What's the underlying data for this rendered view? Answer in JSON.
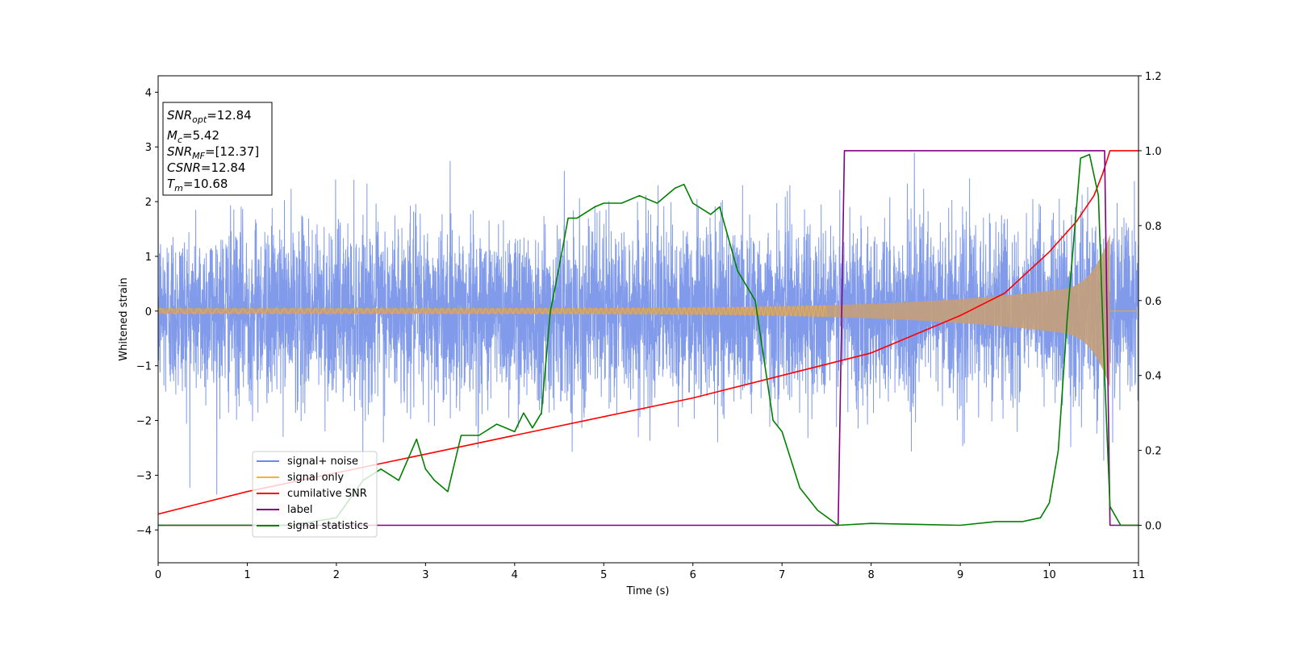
{
  "chart_data": {
    "type": "line",
    "xlabel": "Time (s)",
    "ylabel": "Whitened strain",
    "xlim": [
      0,
      11
    ],
    "ylim_left": [
      -4.6,
      4.3
    ],
    "ylim_right": [
      -0.1,
      1.2
    ],
    "x_ticks": [
      0,
      1,
      2,
      3,
      4,
      5,
      6,
      7,
      8,
      9,
      10,
      11
    ],
    "y_ticks_left": [
      -4,
      -3,
      -2,
      -1,
      0,
      1,
      2,
      3,
      4
    ],
    "y_ticks_right": [
      0.0,
      0.2,
      0.4,
      0.6,
      0.8,
      1.0,
      1.2
    ],
    "x_tick_labels": [
      "0",
      "1",
      "2",
      "3",
      "4",
      "5",
      "6",
      "7",
      "8",
      "9",
      "10",
      "11"
    ],
    "y_tick_labels_left": [
      "−4",
      "−3",
      "−2",
      "−1",
      "0",
      "1",
      "2",
      "3",
      "4"
    ],
    "y_tick_labels_right": [
      "0.0",
      "0.2",
      "0.4",
      "0.6",
      "0.8",
      "1.0",
      "1.2"
    ],
    "annotation": {
      "snr_opt": {
        "base": "SNR",
        "sub": "opt",
        "value": "=12.84"
      },
      "mc": {
        "base": "M",
        "sub": "c",
        "value": "=5.42"
      },
      "snr_mf": {
        "base": "SNR",
        "sub": "MF",
        "value": "=[12.37]"
      },
      "csnr": {
        "base": "CSNR",
        "sub": "",
        "value": "=12.84"
      },
      "tm": {
        "base": "T",
        "sub": "m",
        "value": "=10.68"
      }
    },
    "legend": {
      "placement": "lower-left",
      "entries": [
        "signal+ noise",
        "signal only",
        "cumilative SNR",
        "label",
        "signal statistics"
      ]
    },
    "colors": {
      "noise": "#6b8ae6",
      "signal": "#f5b041",
      "signal_fill": "#c4a07a",
      "csnr": "#ff0000",
      "label": "#800080",
      "stats": "#008000"
    },
    "series": [
      {
        "name": "signal+ noise",
        "axis": "left",
        "style": "noise",
        "envelope_sigma": 0.8,
        "range": [
          -4.2,
          3.9
        ]
      },
      {
        "name": "signal only",
        "axis": "left",
        "style": "chirp",
        "amplitude_start": 0.05,
        "amplitude_end": 1.4,
        "merger_time": 10.68
      },
      {
        "name": "cumilative SNR",
        "axis": "right",
        "x": [
          0,
          1,
          2,
          3,
          4,
          5,
          6,
          7,
          8,
          9,
          9.5,
          10,
          10.3,
          10.5,
          10.6,
          10.68,
          11
        ],
        "y": [
          0.03,
          0.09,
          0.14,
          0.19,
          0.24,
          0.29,
          0.34,
          0.4,
          0.46,
          0.56,
          0.62,
          0.73,
          0.81,
          0.88,
          0.94,
          1.0,
          1.0
        ]
      },
      {
        "name": "label",
        "axis": "right",
        "x": [
          0,
          7.63,
          7.7,
          10.62,
          10.68,
          11
        ],
        "y": [
          0.0,
          0.0,
          1.0,
          1.0,
          0.0,
          0.0
        ]
      },
      {
        "name": "signal statistics",
        "axis": "right",
        "x": [
          0,
          1.5,
          2.0,
          2.3,
          2.5,
          2.7,
          2.9,
          3.0,
          3.1,
          3.25,
          3.4,
          3.6,
          3.8,
          3.9,
          4.0,
          4.1,
          4.2,
          4.3,
          4.4,
          4.5,
          4.6,
          4.7,
          4.9,
          5.0,
          5.2,
          5.4,
          5.6,
          5.8,
          5.9,
          6.0,
          6.2,
          6.3,
          6.5,
          6.7,
          6.9,
          7.0,
          7.2,
          7.4,
          7.63,
          8.0,
          9.0,
          9.4,
          9.7,
          9.9,
          10.0,
          10.1,
          10.2,
          10.35,
          10.45,
          10.55,
          10.62,
          10.68,
          10.8,
          11.0
        ],
        "y": [
          0.0,
          0.0,
          0.02,
          0.12,
          0.15,
          0.12,
          0.23,
          0.15,
          0.12,
          0.09,
          0.24,
          0.24,
          0.27,
          0.26,
          0.25,
          0.3,
          0.26,
          0.3,
          0.57,
          0.69,
          0.82,
          0.82,
          0.85,
          0.86,
          0.86,
          0.88,
          0.86,
          0.9,
          0.91,
          0.86,
          0.83,
          0.85,
          0.68,
          0.6,
          0.28,
          0.25,
          0.1,
          0.04,
          0.0,
          0.005,
          0.0,
          0.01,
          0.01,
          0.02,
          0.06,
          0.2,
          0.55,
          0.98,
          0.99,
          0.88,
          0.4,
          0.05,
          0.0,
          0.0
        ]
      }
    ]
  }
}
